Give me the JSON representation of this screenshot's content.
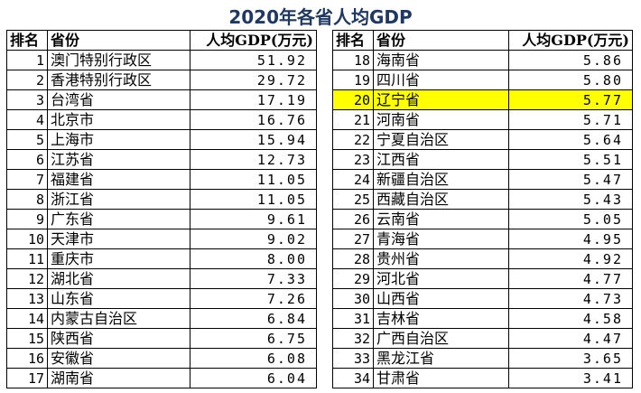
{
  "title": "2020年各省人均GDP",
  "tables": [
    {
      "header": [
        "排名",
        "省份",
        "人均GDP(万元)"
      ],
      "rows": [
        [
          "1",
          "澳门特别行政区",
          "51.92"
        ],
        [
          "2",
          "香港特别行政区",
          "29.72"
        ],
        [
          "3",
          "台湾省",
          "17.19"
        ],
        [
          "4",
          "北京市",
          "16.76"
        ],
        [
          "5",
          "上海市",
          "15.94"
        ],
        [
          "6",
          "江苏省",
          "12.73"
        ],
        [
          "7",
          "福建省",
          "11.05"
        ],
        [
          "8",
          "浙江省",
          "11.05"
        ],
        [
          "9",
          "广东省",
          "9.61"
        ],
        [
          "10",
          "天津市",
          "9.02"
        ],
        [
          "11",
          "重庆市",
          "8.00"
        ],
        [
          "12",
          "湖北省",
          "7.33"
        ],
        [
          "13",
          "山东省",
          "7.26"
        ],
        [
          "14",
          "内蒙古自治区",
          "6.84"
        ],
        [
          "15",
          "陕西省",
          "6.75"
        ],
        [
          "16",
          "安徽省",
          "6.08"
        ],
        [
          "17",
          "湖南省",
          "6.04"
        ]
      ]
    },
    {
      "header": [
        "排名",
        "省份",
        "人均GDP(万元)"
      ],
      "rows": [
        [
          "18",
          "海南省",
          "5.86"
        ],
        [
          "19",
          "四川省",
          "5.80"
        ],
        [
          "20",
          "辽宁省",
          "5.77"
        ],
        [
          "21",
          "河南省",
          "5.71"
        ],
        [
          "22",
          "宁夏自治区",
          "5.64"
        ],
        [
          "23",
          "江西省",
          "5.51"
        ],
        [
          "24",
          "新疆自治区",
          "5.47"
        ],
        [
          "25",
          "西藏自治区",
          "5.43"
        ],
        [
          "26",
          "云南省",
          "5.05"
        ],
        [
          "27",
          "青海省",
          "4.95"
        ],
        [
          "28",
          "贵州省",
          "4.92"
        ],
        [
          "29",
          "河北省",
          "4.77"
        ],
        [
          "30",
          "山西省",
          "4.73"
        ],
        [
          "31",
          "吉林省",
          "4.58"
        ],
        [
          "32",
          "广西自治区",
          "4.47"
        ],
        [
          "33",
          "黑龙江省",
          "3.65"
        ],
        [
          "34",
          "甘肃省",
          "3.41"
        ]
      ]
    }
  ]
}
